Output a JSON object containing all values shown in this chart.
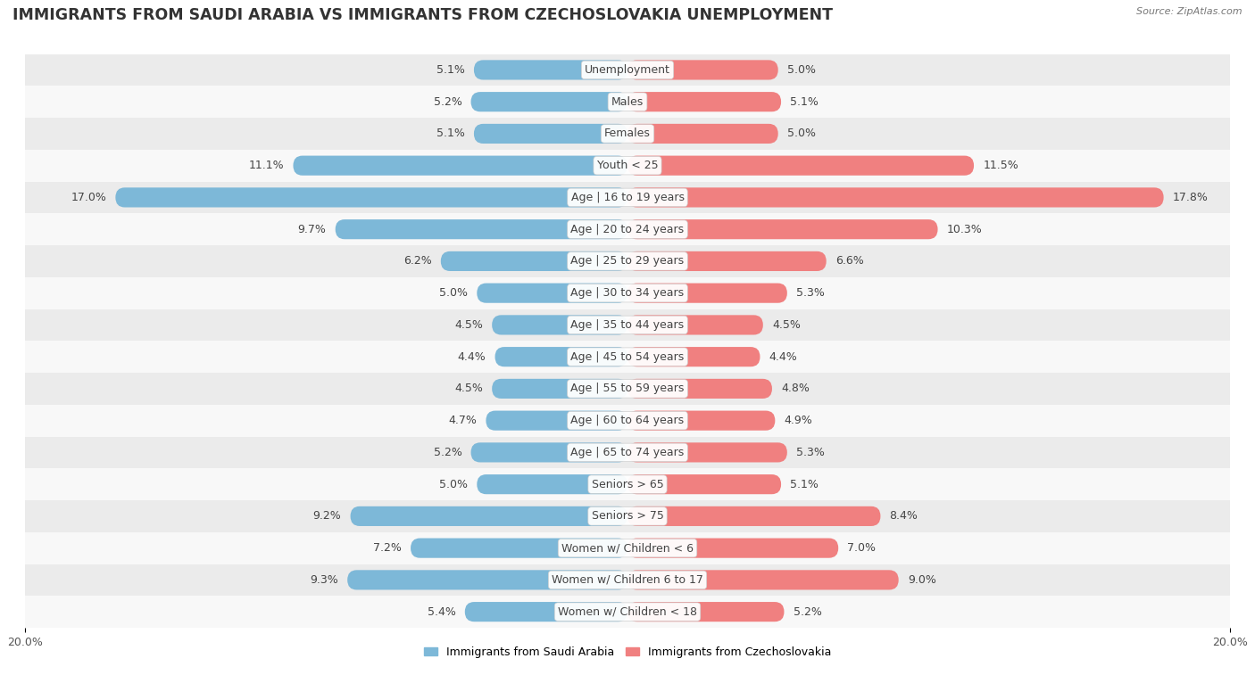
{
  "title": "IMMIGRANTS FROM SAUDI ARABIA VS IMMIGRANTS FROM CZECHOSLOVAKIA UNEMPLOYMENT",
  "source": "Source: ZipAtlas.com",
  "categories": [
    "Unemployment",
    "Males",
    "Females",
    "Youth < 25",
    "Age | 16 to 19 years",
    "Age | 20 to 24 years",
    "Age | 25 to 29 years",
    "Age | 30 to 34 years",
    "Age | 35 to 44 years",
    "Age | 45 to 54 years",
    "Age | 55 to 59 years",
    "Age | 60 to 64 years",
    "Age | 65 to 74 years",
    "Seniors > 65",
    "Seniors > 75",
    "Women w/ Children < 6",
    "Women w/ Children 6 to 17",
    "Women w/ Children < 18"
  ],
  "left_values": [
    5.1,
    5.2,
    5.1,
    11.1,
    17.0,
    9.7,
    6.2,
    5.0,
    4.5,
    4.4,
    4.5,
    4.7,
    5.2,
    5.0,
    9.2,
    7.2,
    9.3,
    5.4
  ],
  "right_values": [
    5.0,
    5.1,
    5.0,
    11.5,
    17.8,
    10.3,
    6.6,
    5.3,
    4.5,
    4.4,
    4.8,
    4.9,
    5.3,
    5.1,
    8.4,
    7.0,
    9.0,
    5.2
  ],
  "left_color": "#7db8d8",
  "right_color": "#f08080",
  "left_label": "Immigrants from Saudi Arabia",
  "right_label": "Immigrants from Czechoslovakia",
  "xlim": 20.0,
  "bar_height": 0.62,
  "bg_color_odd": "#ebebeb",
  "bg_color_even": "#f8f8f8",
  "title_fontsize": 12.5,
  "label_fontsize": 9,
  "value_fontsize": 9,
  "tick_fontsize": 9,
  "cat_label_fontsize": 9
}
